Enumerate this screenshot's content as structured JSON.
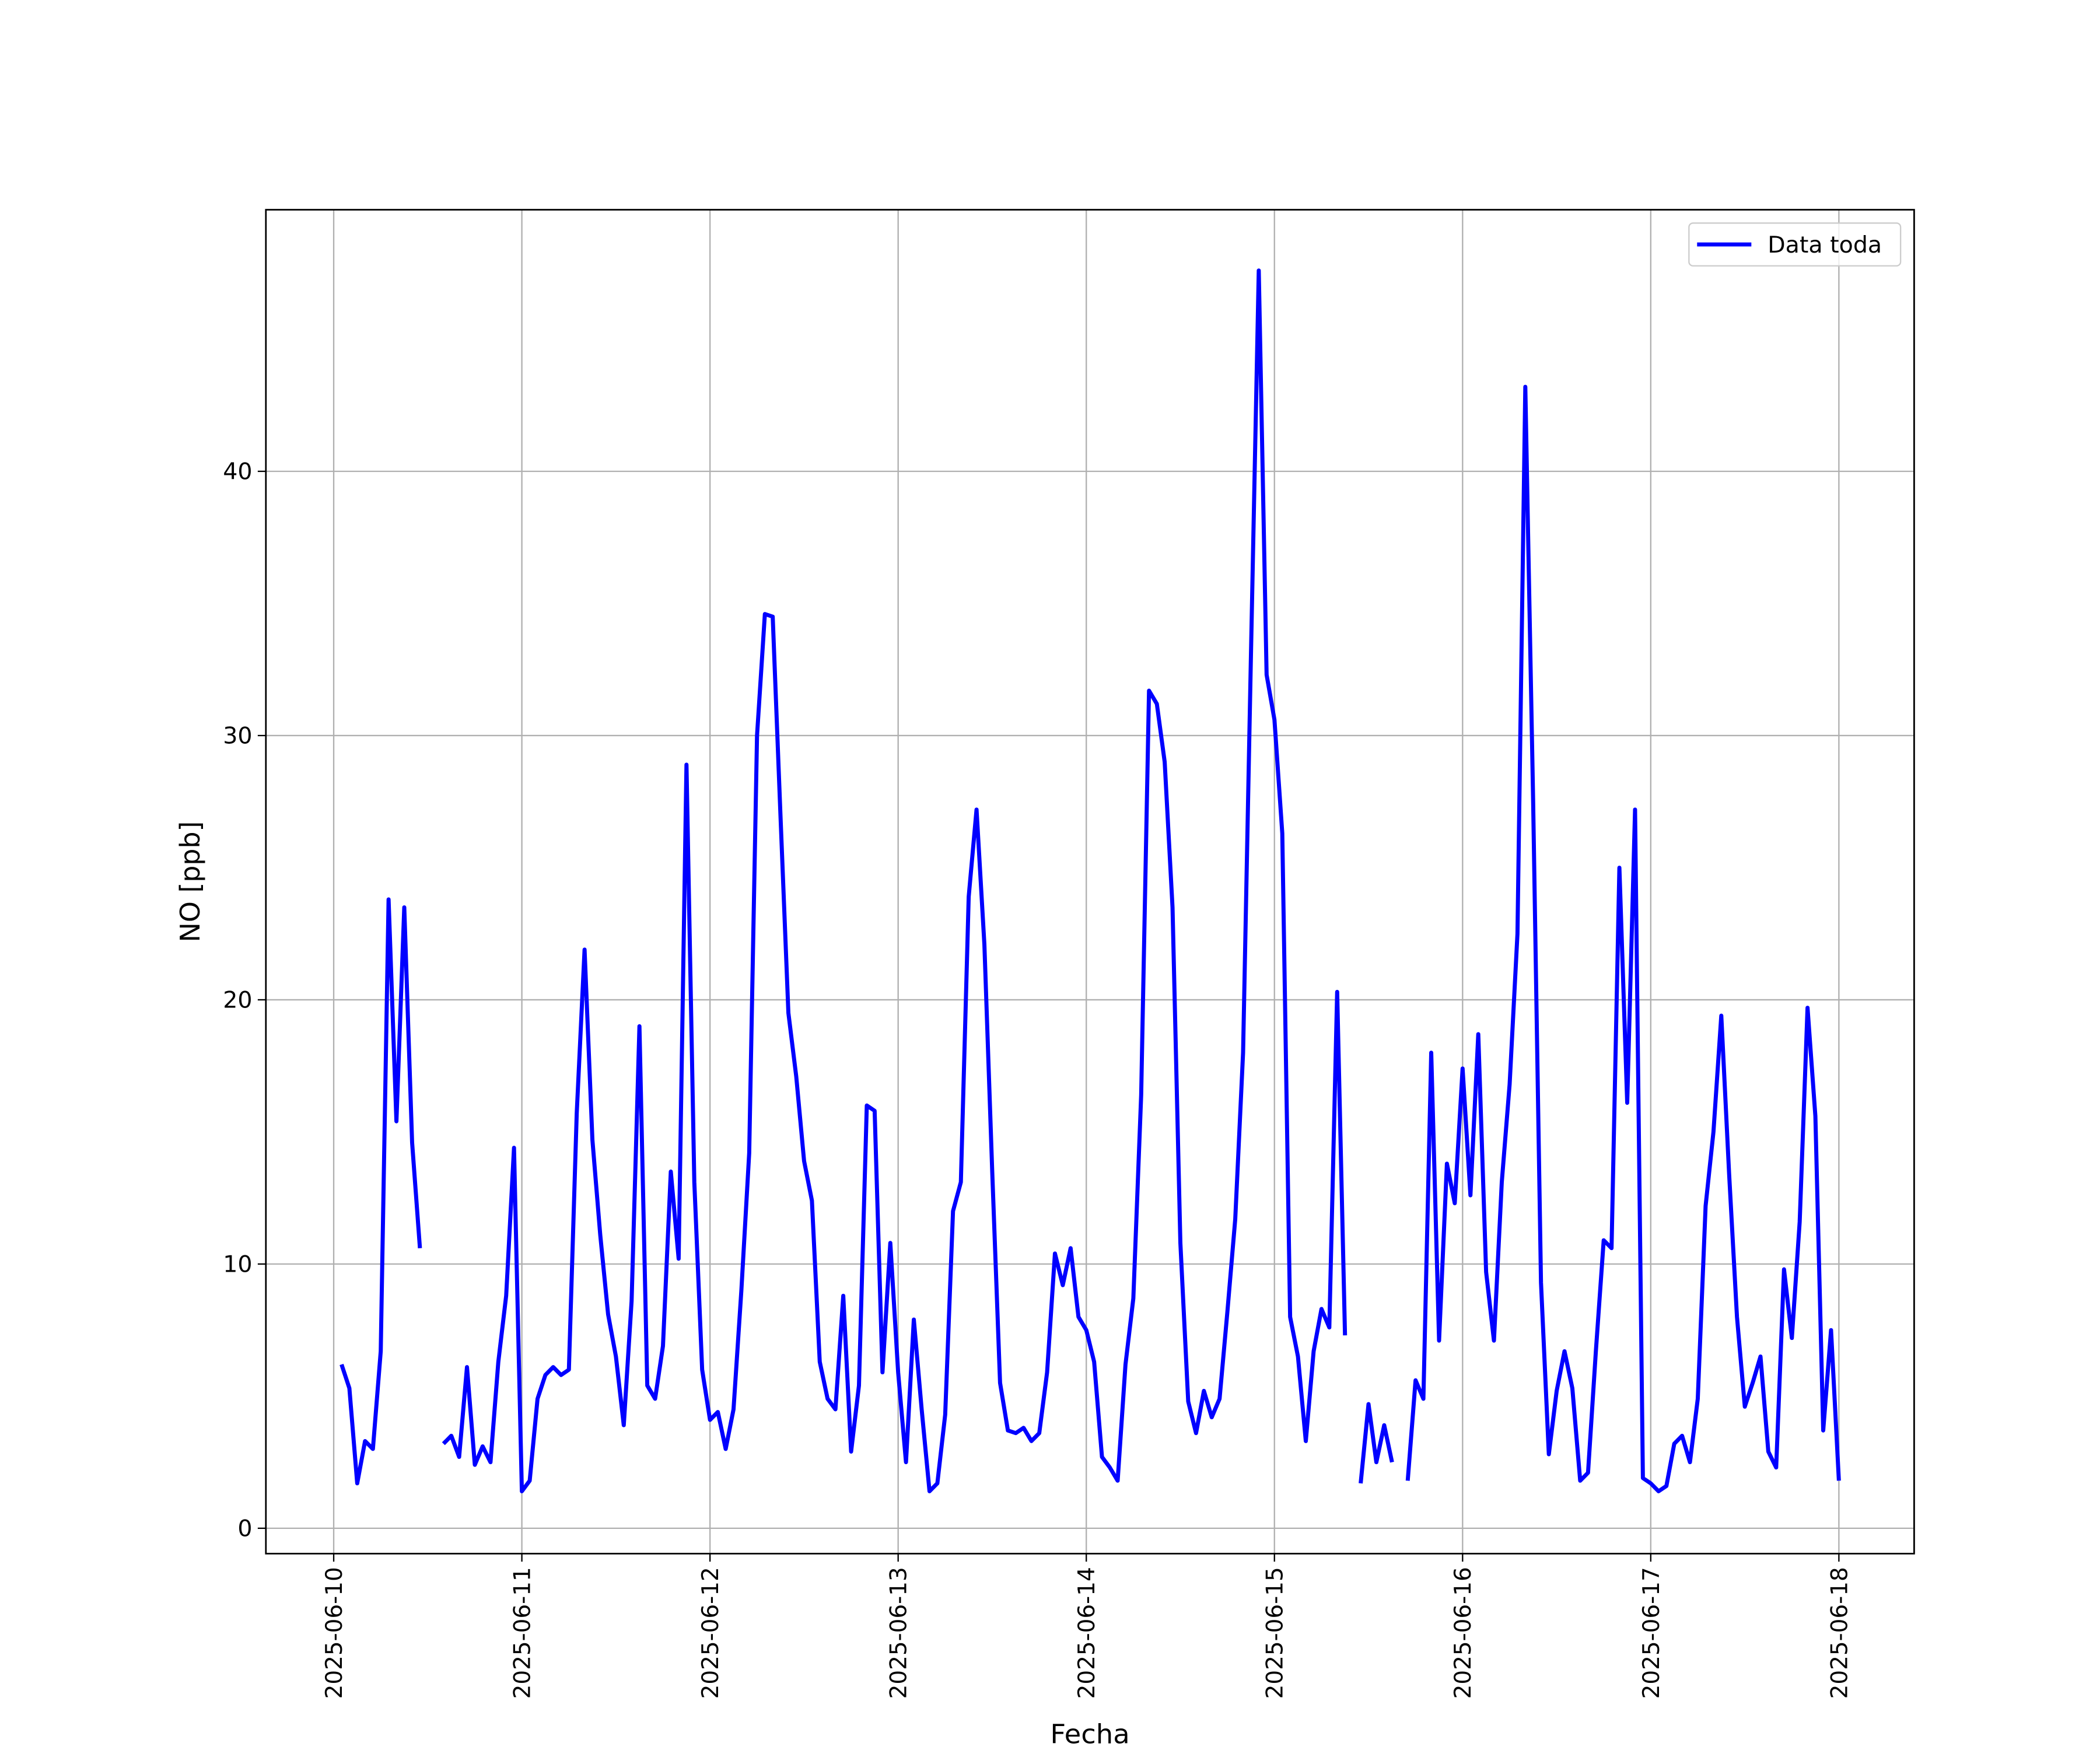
{
  "chart_data": {
    "type": "line",
    "x_label": "Fecha",
    "y_label": "NO [ppb]",
    "x": [
      "2025-06-10 00:00",
      "2025-06-10 01:00",
      "2025-06-10 02:00",
      "2025-06-10 03:00",
      "2025-06-10 04:00",
      "2025-06-10 05:00",
      "2025-06-10 06:00",
      "2025-06-10 07:00",
      "2025-06-10 08:00",
      "2025-06-10 09:00",
      "2025-06-10 10:00",
      "2025-06-10 11:00",
      "2025-06-10 12:00",
      "2025-06-10 13:00",
      "2025-06-10 14:00",
      "2025-06-10 15:00",
      "2025-06-10 16:00",
      "2025-06-10 17:00",
      "2025-06-10 18:00",
      "2025-06-10 19:00",
      "2025-06-10 20:00",
      "2025-06-10 21:00",
      "2025-06-10 22:00",
      "2025-06-10 23:00",
      "2025-06-11 00:00",
      "2025-06-11 01:00",
      "2025-06-11 02:00",
      "2025-06-11 03:00",
      "2025-06-11 04:00",
      "2025-06-11 05:00",
      "2025-06-11 06:00",
      "2025-06-11 07:00",
      "2025-06-11 08:00",
      "2025-06-11 09:00",
      "2025-06-11 10:00",
      "2025-06-11 11:00",
      "2025-06-11 12:00",
      "2025-06-11 13:00",
      "2025-06-11 14:00",
      "2025-06-11 15:00",
      "2025-06-11 16:00",
      "2025-06-11 17:00",
      "2025-06-11 18:00",
      "2025-06-11 19:00",
      "2025-06-11 20:00",
      "2025-06-11 21:00",
      "2025-06-11 22:00",
      "2025-06-11 23:00",
      "2025-06-12 00:00",
      "2025-06-12 01:00",
      "2025-06-12 02:00",
      "2025-06-12 03:00",
      "2025-06-12 04:00",
      "2025-06-12 05:00",
      "2025-06-12 06:00",
      "2025-06-12 07:00",
      "2025-06-12 08:00",
      "2025-06-12 09:00",
      "2025-06-12 10:00",
      "2025-06-12 11:00",
      "2025-06-12 12:00",
      "2025-06-12 13:00",
      "2025-06-12 14:00",
      "2025-06-12 15:00",
      "2025-06-12 16:00",
      "2025-06-12 17:00",
      "2025-06-12 18:00",
      "2025-06-12 19:00",
      "2025-06-12 20:00",
      "2025-06-12 21:00",
      "2025-06-12 22:00",
      "2025-06-12 23:00",
      "2025-06-13 00:00",
      "2025-06-13 01:00",
      "2025-06-13 02:00",
      "2025-06-13 03:00",
      "2025-06-13 04:00",
      "2025-06-13 05:00",
      "2025-06-13 06:00",
      "2025-06-13 07:00",
      "2025-06-13 08:00",
      "2025-06-13 09:00",
      "2025-06-13 10:00",
      "2025-06-13 11:00",
      "2025-06-13 12:00",
      "2025-06-13 13:00",
      "2025-06-13 14:00",
      "2025-06-13 15:00",
      "2025-06-13 16:00",
      "2025-06-13 17:00",
      "2025-06-13 18:00",
      "2025-06-13 19:00",
      "2025-06-13 20:00",
      "2025-06-13 21:00",
      "2025-06-13 22:00",
      "2025-06-13 23:00",
      "2025-06-14 00:00",
      "2025-06-14 01:00",
      "2025-06-14 02:00",
      "2025-06-14 03:00",
      "2025-06-14 04:00",
      "2025-06-14 05:00",
      "2025-06-14 06:00",
      "2025-06-14 07:00",
      "2025-06-14 08:00",
      "2025-06-14 09:00",
      "2025-06-14 10:00",
      "2025-06-14 11:00",
      "2025-06-14 12:00",
      "2025-06-14 13:00",
      "2025-06-14 14:00",
      "2025-06-14 15:00",
      "2025-06-14 16:00",
      "2025-06-14 17:00",
      "2025-06-14 18:00",
      "2025-06-14 19:00",
      "2025-06-14 20:00",
      "2025-06-14 21:00",
      "2025-06-14 22:00",
      "2025-06-14 23:00",
      "2025-06-15 00:00",
      "2025-06-15 01:00",
      "2025-06-15 02:00",
      "2025-06-15 03:00",
      "2025-06-15 04:00",
      "2025-06-15 05:00",
      "2025-06-15 06:00",
      "2025-06-15 07:00",
      "2025-06-15 08:00",
      "2025-06-15 09:00",
      "2025-06-15 10:00",
      "2025-06-15 11:00",
      "2025-06-15 12:00",
      "2025-06-15 13:00",
      "2025-06-15 14:00",
      "2025-06-15 15:00",
      "2025-06-15 16:00",
      "2025-06-15 17:00",
      "2025-06-15 18:00",
      "2025-06-15 19:00",
      "2025-06-15 20:00",
      "2025-06-15 21:00",
      "2025-06-15 22:00",
      "2025-06-15 23:00",
      "2025-06-16 00:00",
      "2025-06-16 01:00",
      "2025-06-16 02:00",
      "2025-06-16 03:00",
      "2025-06-16 04:00",
      "2025-06-16 05:00",
      "2025-06-16 06:00",
      "2025-06-16 07:00",
      "2025-06-16 08:00",
      "2025-06-16 09:00",
      "2025-06-16 10:00",
      "2025-06-16 11:00",
      "2025-06-16 12:00",
      "2025-06-16 13:00",
      "2025-06-16 14:00",
      "2025-06-16 15:00",
      "2025-06-16 16:00",
      "2025-06-16 17:00",
      "2025-06-16 18:00",
      "2025-06-16 19:00",
      "2025-06-16 20:00",
      "2025-06-16 21:00",
      "2025-06-16 22:00",
      "2025-06-16 23:00",
      "2025-06-17 00:00",
      "2025-06-17 01:00",
      "2025-06-17 02:00",
      "2025-06-17 03:00",
      "2025-06-17 04:00",
      "2025-06-17 05:00",
      "2025-06-17 06:00",
      "2025-06-17 07:00",
      "2025-06-17 08:00",
      "2025-06-17 09:00",
      "2025-06-17 10:00",
      "2025-06-17 11:00",
      "2025-06-17 12:00",
      "2025-06-17 13:00",
      "2025-06-17 14:00",
      "2025-06-17 15:00",
      "2025-06-17 16:00",
      "2025-06-17 17:00",
      "2025-06-17 18:00",
      "2025-06-17 19:00",
      "2025-06-17 20:00",
      "2025-06-17 21:00",
      "2025-06-17 22:00",
      "2025-06-17 23:00",
      "2025-06-18 00:00"
    ],
    "series": [
      {
        "name": "Data toda",
        "color": "#0000ff",
        "values": [
          null,
          6.2,
          5.3,
          1.7,
          3.3,
          3.0,
          6.7,
          23.8,
          15.4,
          23.5,
          14.6,
          10.6,
          null,
          null,
          3.2,
          3.5,
          2.7,
          6.1,
          2.4,
          3.1,
          2.5,
          6.3,
          8.8,
          14.4,
          1.4,
          1.8,
          4.9,
          5.8,
          6.1,
          5.8,
          6.0,
          15.7,
          21.9,
          14.7,
          11.1,
          8.1,
          6.5,
          3.9,
          8.6,
          19.0,
          5.4,
          4.9,
          6.9,
          13.5,
          10.2,
          28.9,
          13.1,
          6.0,
          4.1,
          4.4,
          3.0,
          4.5,
          9.0,
          14.2,
          30.0,
          34.6,
          34.5,
          26.9,
          19.5,
          17.1,
          13.9,
          12.4,
          6.3,
          4.9,
          4.5,
          8.8,
          2.9,
          5.4,
          16.0,
          15.8,
          5.9,
          10.8,
          5.9,
          2.5,
          7.9,
          4.5,
          1.4,
          1.7,
          4.3,
          12.0,
          13.1,
          23.9,
          27.2,
          22.1,
          13.5,
          5.5,
          3.7,
          3.6,
          3.8,
          3.3,
          3.6,
          5.9,
          10.4,
          9.2,
          10.6,
          8.0,
          7.5,
          6.3,
          2.7,
          2.3,
          1.8,
          6.2,
          8.7,
          16.4,
          31.7,
          31.2,
          29.0,
          23.5,
          10.8,
          4.8,
          3.6,
          5.2,
          4.2,
          4.9,
          8.2,
          11.7,
          18.0,
          33.0,
          47.6,
          32.3,
          30.6,
          26.3,
          8.0,
          6.5,
          3.3,
          6.7,
          8.3,
          7.6,
          20.3,
          7.3,
          null,
          1.7,
          4.7,
          2.5,
          3.9,
          2.5,
          null,
          1.8,
          5.6,
          4.9,
          18.0,
          7.1,
          13.8,
          12.3,
          17.4,
          12.6,
          18.7,
          9.7,
          7.1,
          13.1,
          16.8,
          22.5,
          43.2,
          27.5,
          9.3,
          2.8,
          5.2,
          6.7,
          5.3,
          1.8,
          2.1,
          6.7,
          10.9,
          10.6,
          25.0,
          16.1,
          27.2,
          1.9,
          1.7,
          1.4,
          1.6,
          3.2,
          3.5,
          2.5,
          4.9,
          12.2,
          15.0,
          19.4,
          13.4,
          8.0,
          4.6,
          5.5,
          6.5,
          2.9,
          2.3,
          9.8,
          7.2,
          11.6,
          19.7,
          15.6,
          3.7,
          7.5,
          1.8
        ]
      }
    ],
    "xlim": [
      "2025-06-09 15:21",
      "2025-06-18 09:36"
    ],
    "xticks": [
      "2025-06-10",
      "2025-06-11",
      "2025-06-12",
      "2025-06-13",
      "2025-06-14",
      "2025-06-15",
      "2025-06-16",
      "2025-06-17",
      "2025-06-18"
    ],
    "ylim": [
      -0.96,
      49.9
    ],
    "yticks": [
      0,
      10,
      20,
      30,
      40
    ],
    "grid": true,
    "legend": "upper right"
  }
}
